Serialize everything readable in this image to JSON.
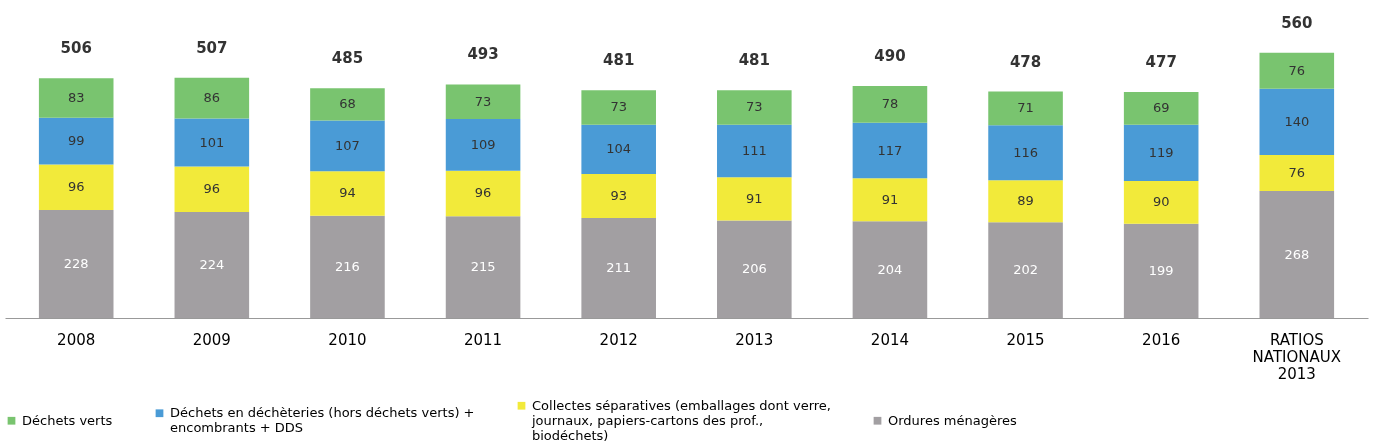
{
  "chart_data": {
    "type": "bar",
    "stacked": true,
    "data_labels": true,
    "grid": false,
    "legend": "bottom",
    "categories": [
      "2008",
      "2009",
      "2010",
      "2011",
      "2012",
      "2013",
      "2014",
      "2015",
      "2016",
      "RATIOS\nNATIONAUX\n2013"
    ],
    "series": [
      {
        "name": "Ordures ménagères",
        "color": "#a29fa2",
        "values": [
          228,
          224,
          216,
          215,
          211,
          206,
          204,
          202,
          199,
          268
        ]
      },
      {
        "name": "Collectes séparatives (emballages dont verre, journaux, papiers-cartons des prof., biodéchets)",
        "color": "#f2ea3a",
        "values": [
          96,
          96,
          94,
          96,
          93,
          91,
          91,
          89,
          90,
          76
        ]
      },
      {
        "name": "Déchets en déchèteries (hors déchets verts) + encombrants + DDS",
        "color": "#4a9bd6",
        "values": [
          99,
          101,
          107,
          109,
          104,
          111,
          117,
          116,
          119,
          140
        ]
      },
      {
        "name": "Déchets verts",
        "color": "#79c46f",
        "values": [
          83,
          86,
          68,
          73,
          73,
          73,
          78,
          71,
          69,
          76
        ]
      }
    ],
    "totals": [
      "506",
      "507",
      "485",
      "493",
      "481",
      "481",
      "490",
      "478",
      "477",
      "560"
    ]
  }
}
